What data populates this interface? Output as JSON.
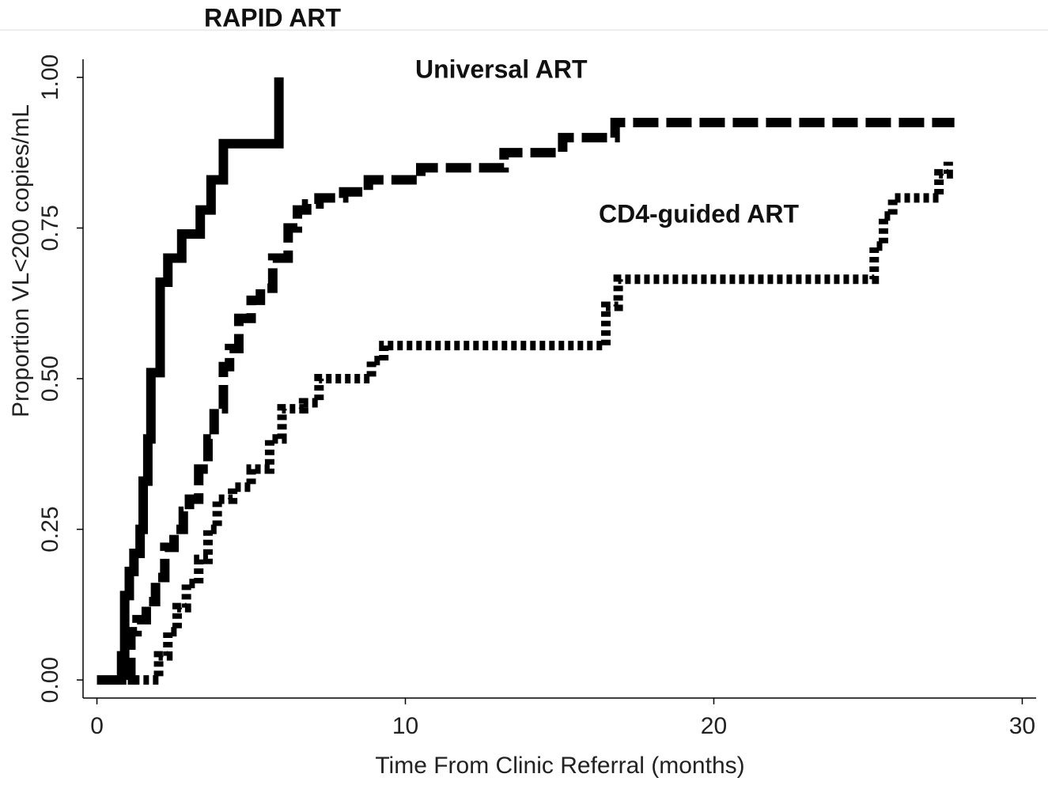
{
  "chart_data": {
    "type": "step",
    "x_label": "Time From Clinic Referral (months)",
    "y_label": "Proportion VL<200 copies/mL",
    "xlim": [
      -0.45,
      30.45
    ],
    "ylim": [
      -0.03,
      1.03
    ],
    "xticks": [
      0,
      10,
      20,
      30
    ],
    "yticks": [
      {
        "value": 0,
        "label": "0.00"
      },
      {
        "value": 0.25,
        "label": "0.25"
      },
      {
        "value": 0.5,
        "label": "0.50"
      },
      {
        "value": 0.75,
        "label": "0.75"
      },
      {
        "value": 1,
        "label": "1.00"
      }
    ],
    "series": [
      {
        "name": "RAPID ART",
        "color": "#000000",
        "style": "solid",
        "x": [
          0,
          0.8,
          0.9,
          1.05,
          1.2,
          1.4,
          1.5,
          1.65,
          1.75,
          2.05,
          2.3,
          2.75,
          3.35,
          3.7,
          4.1,
          5.9
        ],
        "values": [
          0,
          0.04,
          0.14,
          0.18,
          0.21,
          0.25,
          0.33,
          0.4,
          0.51,
          0.66,
          0.7,
          0.74,
          0.78,
          0.83,
          0.89,
          1.0
        ]
      },
      {
        "name": "Universal ART",
        "color": "#000000",
        "style": "dashed",
        "x": [
          1.0,
          1.1,
          1.3,
          1.6,
          1.9,
          2.2,
          2.5,
          2.8,
          3.0,
          3.3,
          3.6,
          3.8,
          4.1,
          4.3,
          4.6,
          5.0,
          5.3,
          5.7,
          6.2,
          6.5,
          6.8,
          7.2,
          8.0,
          8.8,
          10.5,
          13.2,
          15.1,
          16.8,
          27.8
        ],
        "values": [
          0,
          0.08,
          0.1,
          0.13,
          0.17,
          0.22,
          0.25,
          0.28,
          0.3,
          0.35,
          0.4,
          0.45,
          0.52,
          0.55,
          0.6,
          0.63,
          0.65,
          0.7,
          0.75,
          0.78,
          0.79,
          0.8,
          0.81,
          0.83,
          0.85,
          0.875,
          0.9,
          0.925,
          0.925
        ]
      },
      {
        "name": "CD4-guided ART",
        "color": "#000000",
        "style": "dotted",
        "x": [
          1.2,
          2.0,
          2.3,
          2.6,
          2.9,
          3.3,
          3.6,
          3.9,
          4.4,
          5.0,
          5.6,
          6.0,
          6.7,
          7.2,
          8.9,
          9.3,
          16.5,
          16.9,
          25.2,
          25.5,
          25.8,
          27.3,
          27.6
        ],
        "values": [
          0,
          0.04,
          0.08,
          0.12,
          0.16,
          0.2,
          0.25,
          0.3,
          0.32,
          0.35,
          0.4,
          0.45,
          0.46,
          0.5,
          0.53,
          0.555,
          0.62,
          0.665,
          0.72,
          0.77,
          0.8,
          0.84,
          0.86
        ]
      }
    ]
  }
}
